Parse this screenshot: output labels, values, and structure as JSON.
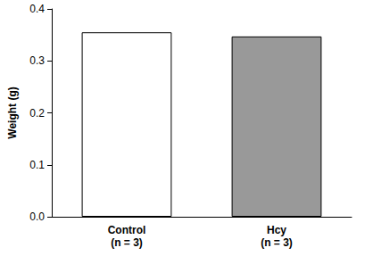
{
  "chart_data": {
    "type": "bar",
    "y_label": "Weight (g)",
    "categories": [
      "Control\n(n = 3)",
      "Hcy\n(n = 3)"
    ],
    "values": [
      0.355,
      0.347
    ],
    "colors": [
      "#ffffff",
      "#999999"
    ],
    "ylim": [
      0,
      0.4
    ],
    "yticks": [
      {
        "value": 0,
        "label": "0.0"
      },
      0.1,
      0.2,
      0.3,
      0.4
    ],
    "grid": false
  }
}
